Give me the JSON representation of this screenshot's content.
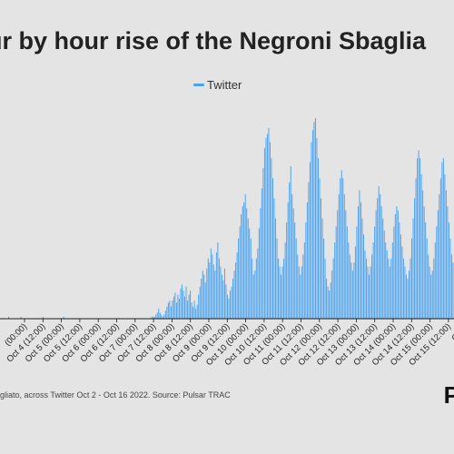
{
  "colors": {
    "background": "#e4e4e4",
    "series": "#4aa3f0",
    "axis": "#1a1a1a"
  },
  "footer_text": "gliato, across Twitter Oct 2 - Oct 16 2022. Source: Pulsar TRAC",
  "logo_text": "P",
  "chart_data": {
    "type": "bar",
    "title": "ur by hour rise of the Negroni Sbaglia",
    "legend": {
      "position": "top-center",
      "entries": [
        "Twitter"
      ]
    },
    "x_tick_labels": [
      "(00:00)",
      "Oct 4 (12:00)",
      "Oct 5 (00:00)",
      "Oct 5 (12:00)",
      "Oct 6 (00:00)",
      "Oct 6 (12:00)",
      "Oct 7 (00:00)",
      "Oct 7 (12:00)",
      "Oct 8 (00:00)",
      "Oct 8 (12:00)",
      "Oct 9 (00:00)",
      "Oct 9 (12:00)",
      "Oct 10 (00:00)",
      "Oct 10 (12:00)",
      "Oct 11 (00:00)",
      "Oct 11 (12:00)",
      "Oct 12 (00:00)",
      "Oct 12 (12:00)",
      "Oct 13 (00:00)",
      "Oct 13 (12:00)",
      "Oct 14 (00:00)",
      "Oct 14 (12:00)",
      "Oct 15 (00:00)",
      "Oct 15 (12:00)",
      "Oct 1"
    ],
    "y_max": 100,
    "grid": false,
    "series": [
      {
        "name": "Twitter",
        "values": [
          0,
          0,
          0,
          0,
          0,
          0,
          1,
          0,
          0,
          0,
          0,
          0,
          0,
          0,
          0,
          1,
          0,
          0,
          0,
          0,
          0,
          0,
          0,
          0,
          0,
          0,
          0,
          0,
          0,
          0,
          0,
          1,
          0,
          0,
          0,
          0,
          0,
          0,
          0,
          0,
          0,
          0,
          0,
          0,
          0,
          0,
          1,
          0,
          0,
          0,
          0,
          0,
          0,
          0,
          0,
          0,
          0,
          0,
          0,
          0,
          0,
          0,
          0,
          0,
          0,
          0,
          0,
          0,
          0,
          0,
          0,
          0,
          0,
          0,
          0,
          0,
          0,
          0,
          0,
          0,
          0,
          0,
          0,
          0,
          0,
          0,
          0,
          0,
          0,
          0,
          0,
          0,
          0,
          0,
          0,
          0,
          0,
          0,
          0,
          0,
          0,
          0,
          0,
          0,
          0,
          0,
          0,
          0,
          0,
          0,
          1,
          1,
          1,
          2,
          3,
          5,
          3,
          2,
          1,
          2,
          4,
          6,
          8,
          9,
          6,
          9,
          11,
          13,
          8,
          12,
          10,
          15,
          17,
          14,
          11,
          16,
          9,
          12,
          14,
          8,
          6,
          9,
          5,
          7,
          12,
          16,
          20,
          24,
          22,
          18,
          25,
          30,
          28,
          35,
          32,
          27,
          24,
          33,
          38,
          30,
          26,
          22,
          19,
          25,
          17,
          12,
          10,
          14,
          16,
          20,
          24,
          28,
          33,
          40,
          46,
          52,
          56,
          58,
          62,
          55,
          50,
          45,
          40,
          30,
          22,
          24,
          30,
          35,
          45,
          55,
          65,
          75,
          85,
          90,
          92,
          95,
          88,
          80,
          70,
          60,
          50,
          40,
          30,
          26,
          22,
          26,
          30,
          38,
          48,
          58,
          68,
          76,
          62,
          55,
          48,
          40,
          32,
          26,
          22,
          26,
          32,
          38,
          48,
          58,
          68,
          78,
          88,
          94,
          98,
          100,
          90,
          80,
          70,
          60,
          50,
          40,
          30,
          20,
          16,
          14,
          18,
          24,
          30,
          38,
          46,
          54,
          62,
          70,
          74,
          70,
          62,
          54,
          46,
          38,
          32,
          28,
          24,
          28,
          36,
          46,
          56,
          64,
          58,
          50,
          42,
          34,
          30,
          26,
          22,
          26,
          32,
          38,
          46,
          54,
          60,
          66,
          62,
          56,
          50,
          44,
          38,
          34,
          30,
          26,
          30,
          38,
          46,
          52,
          56,
          54,
          48,
          42,
          36,
          30,
          26,
          22,
          20,
          24,
          30,
          40,
          50,
          60,
          70,
          80,
          84,
          80,
          72,
          64,
          56,
          48,
          40,
          32,
          26,
          22,
          24,
          30,
          38,
          46,
          54,
          62,
          70,
          78,
          80,
          72,
          64,
          56,
          48,
          40,
          32,
          28
        ]
      }
    ]
  }
}
